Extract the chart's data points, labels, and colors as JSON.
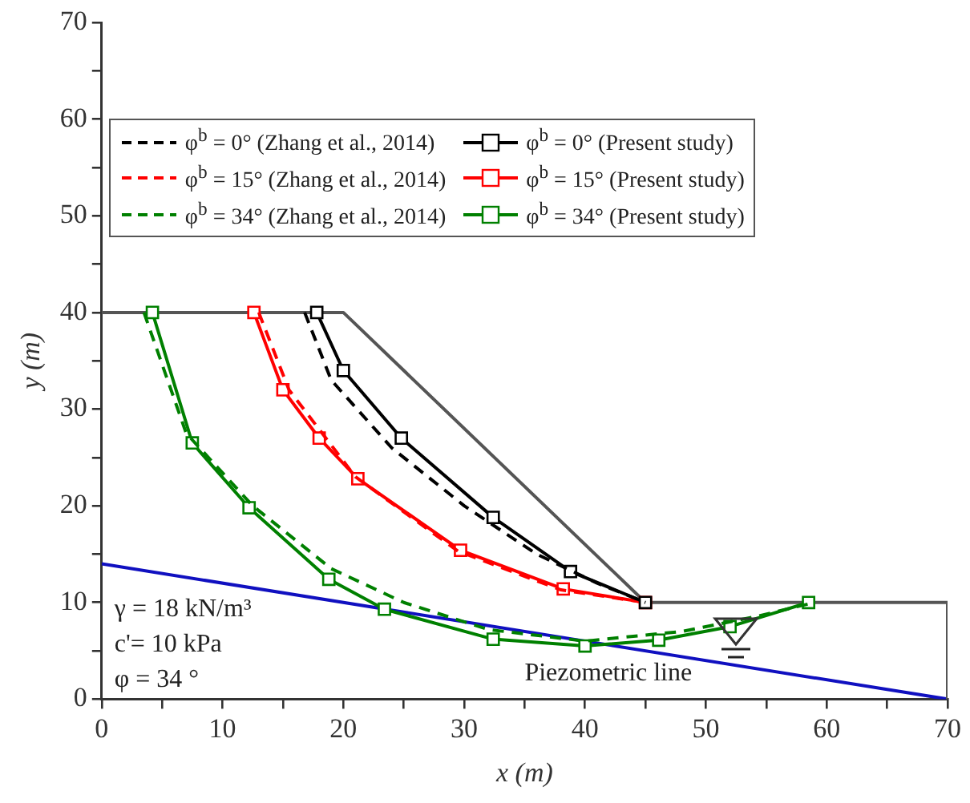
{
  "chart_data": {
    "type": "line",
    "xlabel": "x (m)",
    "ylabel": "y (m)",
    "xlim": [
      0,
      70
    ],
    "ylim": [
      0,
      70
    ],
    "xticks": [
      0,
      {
        "value": 5,
        "label": null
      },
      10,
      {
        "value": 15,
        "label": null
      },
      20,
      {
        "value": 25,
        "label": null
      },
      30,
      {
        "value": 35,
        "label": null
      },
      40,
      {
        "value": 45,
        "label": null
      },
      50,
      {
        "value": 55,
        "label": null
      },
      60,
      {
        "value": 65,
        "label": null
      },
      70
    ],
    "yticks": [
      0,
      {
        "value": 5,
        "label": null
      },
      10,
      {
        "value": 15,
        "label": null
      },
      20,
      {
        "value": 25,
        "label": null
      },
      30,
      {
        "value": 35,
        "label": null
      },
      40,
      {
        "value": 45,
        "label": null
      },
      50,
      {
        "value": 55,
        "label": null
      },
      60,
      {
        "value": 65,
        "label": null
      },
      70
    ],
    "grid": false,
    "legend": "top",
    "series": [
      {
        "name": "φ$^{b}$ = 0° (Zhang et al., 2014)",
        "color": "#000000",
        "line_style": "dashed",
        "marker": "none",
        "x": [
          16.8,
          19,
          24,
          30,
          36,
          41,
          45
        ],
        "values": [
          40,
          33,
          26,
          20,
          15,
          12,
          10
        ]
      },
      {
        "name": "φ$^{b}$ = 0° (Present study)",
        "color": "#000000",
        "line_style": "solid",
        "marker": "square",
        "x": [
          17.8,
          20,
          24.8,
          32.4,
          38.8,
          45
        ],
        "values": [
          40,
          34,
          27,
          18.8,
          13.2,
          10
        ]
      },
      {
        "name": "φ$^{b}$ = 15° (Zhang et al., 2014)",
        "color": "#ff0000",
        "line_style": "dashed",
        "marker": "none",
        "x": [
          13,
          15.5,
          21,
          29.5,
          38,
          45
        ],
        "values": [
          40,
          32,
          23,
          15.3,
          11.3,
          10
        ]
      },
      {
        "name": "φ$^{b}$ = 15° (Present study)",
        "color": "#ff0000",
        "line_style": "solid",
        "marker": "square",
        "x": [
          12.6,
          15,
          18,
          21.2,
          29.7,
          38.2,
          45
        ],
        "values": [
          40,
          32,
          27,
          22.8,
          15.4,
          11.4,
          10
        ]
      },
      {
        "name": "φ$^{b}$ = 34° (Zhang et al., 2014)",
        "color": "#008000",
        "line_style": "dashed",
        "marker": "none",
        "x": [
          3.5,
          7,
          12.5,
          19,
          25,
          32,
          40,
          48,
          54,
          59
        ],
        "values": [
          40,
          27.5,
          20,
          13.5,
          10,
          7.2,
          6,
          7,
          8.5,
          10
        ]
      },
      {
        "name": "φ$^{b}$ = 34° (Present study)",
        "color": "#008000",
        "line_style": "solid",
        "marker": "square",
        "x": [
          4.2,
          7.5,
          12.2,
          18.8,
          23.4,
          32.4,
          40,
          46.1,
          52,
          58.5
        ],
        "values": [
          40,
          26.5,
          19.8,
          12.4,
          9.3,
          6.2,
          5.5,
          6.1,
          7.5,
          10
        ]
      },
      {
        "color": "#555555",
        "line_style": "solid",
        "marker": "none",
        "x": [
          0,
          20,
          45,
          70,
          70
        ],
        "values": [
          40,
          40,
          10,
          10,
          0
        ]
      },
      {
        "color": "#1010c0",
        "line_style": "solid",
        "marker": "none",
        "x": [
          0,
          70
        ],
        "values": [
          14,
          0
        ]
      }
    ],
    "annotations": [
      "γ = 18 kN/m³",
      "c'= 10 kPa",
      "φ = 34 °",
      "Piezometric line"
    ]
  }
}
